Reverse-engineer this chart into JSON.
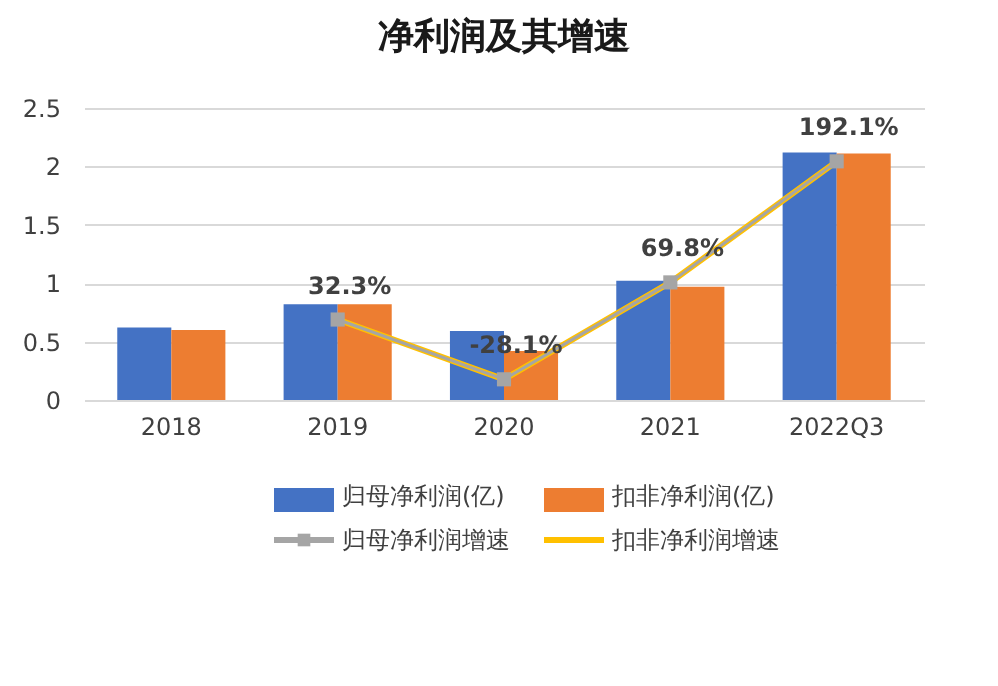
{
  "chart_data": {
    "type": "bar",
    "title": "净利润及其增速",
    "categories": [
      "2018",
      "2019",
      "2020",
      "2021",
      "2022Q3"
    ],
    "series": [
      {
        "name": "归母净利润(亿)",
        "color": "#4472c4",
        "values": [
          0.62,
          0.82,
          0.59,
          1.02,
          2.12
        ]
      },
      {
        "name": "扣非净利润(亿)",
        "color": "#ed7d31",
        "values": [
          0.6,
          0.82,
          0.42,
          0.97,
          2.11
        ]
      },
      {
        "name": "归母净利润增速",
        "type": "line",
        "axis": "y2",
        "color": "#a5a5a5",
        "marker": "square",
        "values": [
          null,
          32.3,
          -28.1,
          69.8,
          192.1
        ],
        "value_labels": [
          null,
          "32.3%",
          "-28.1%",
          "69.8%",
          "192.1%"
        ]
      },
      {
        "name": "扣非净利润增速",
        "type": "line",
        "axis": "y2",
        "color": "#ffc000",
        "marker": "none",
        "values": [
          null,
          32.3,
          -28.1,
          69.8,
          192.1
        ]
      }
    ],
    "ylim": [
      0,
      2.5
    ],
    "yticks": [
      0,
      0.5,
      1,
      1.5,
      2,
      2.5
    ],
    "y2lim": [
      -49,
      246
    ],
    "grid": "y",
    "legend": "bottom"
  }
}
